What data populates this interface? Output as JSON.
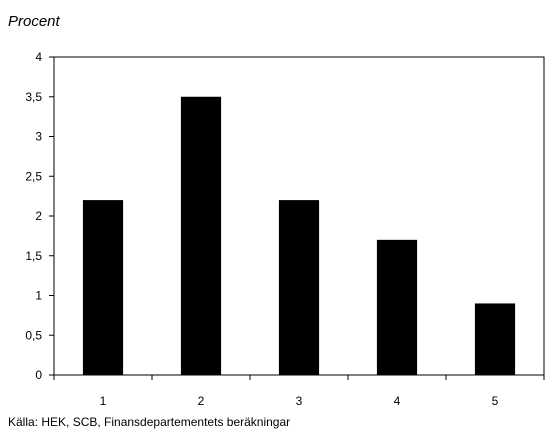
{
  "chart_data": {
    "type": "bar",
    "ylabel": "Procent",
    "xlabel": "",
    "categories": [
      "1",
      "2",
      "3",
      "4",
      "5"
    ],
    "values": [
      2.2,
      3.5,
      2.2,
      1.7,
      0.9
    ],
    "ylim": [
      0,
      4
    ],
    "yticks": [
      "0",
      "0,5",
      "1",
      "1,5",
      "2",
      "2,5",
      "3",
      "3,5",
      "4"
    ],
    "grid": false,
    "legend": "none",
    "bar_color": "#000000",
    "source": "Källa: HEK, SCB, Finansdepartementets beräkningar"
  }
}
